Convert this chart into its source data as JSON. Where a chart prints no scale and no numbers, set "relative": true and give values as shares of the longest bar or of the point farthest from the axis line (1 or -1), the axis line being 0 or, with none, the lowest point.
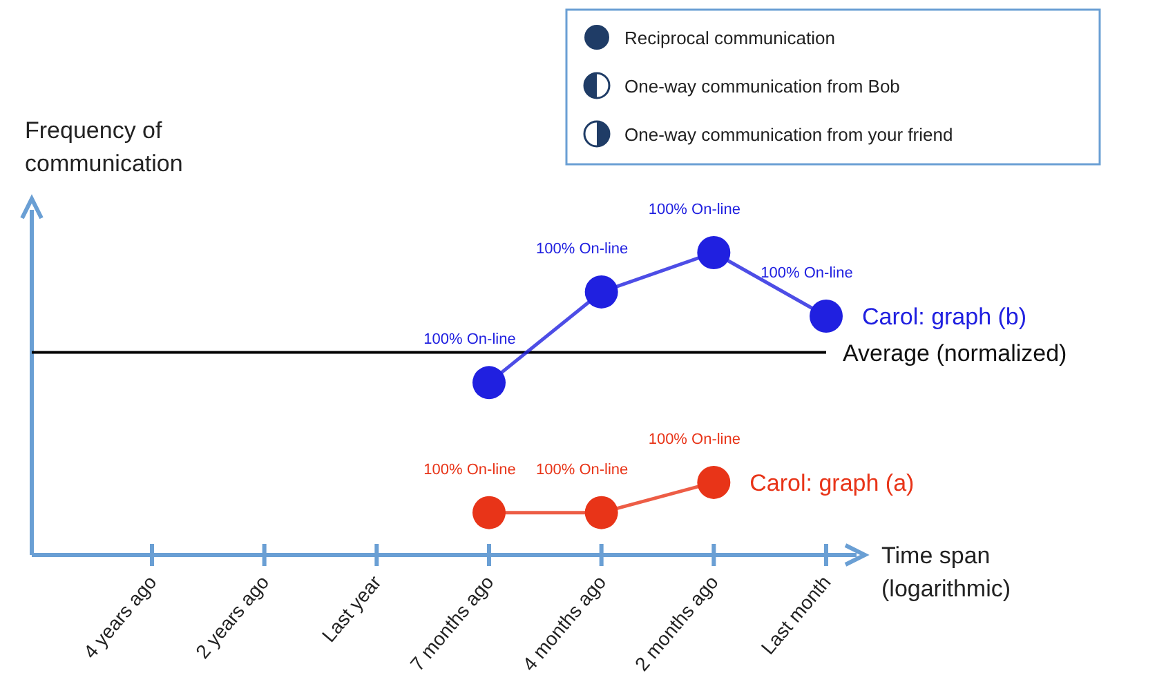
{
  "chart_data": {
    "type": "line",
    "relative": true,
    "xlabel": "Time span (logarithmic)",
    "ylabel": "Frequency of communication",
    "categories": [
      "4 years ago",
      "2 years ago",
      "Last year",
      "7 months ago",
      "4 months ago",
      "2 months ago",
      "Last month"
    ],
    "series": [
      {
        "name": "Carol: graph (b)",
        "color": "#2020e0",
        "values": [
          null,
          null,
          null,
          0.57,
          0.87,
          1,
          0.79
        ]
      },
      {
        "name": "Carol: graph (a)",
        "color": "#e83418",
        "values": [
          null,
          null,
          null,
          0.14,
          0.14,
          0.24,
          null
        ]
      }
    ],
    "ref_lines": [
      {
        "axis": "y",
        "value": 0.67,
        "label": "Average (normalized)",
        "color": "#000000"
      }
    ],
    "annotations": [
      "Reciprocal communication",
      "One-way communication from Bob",
      "One-way communication from your friend",
      {
        "text": "100% On-line",
        "x": "7 months ago",
        "y": 0.57
      },
      {
        "text": "100% On-line",
        "x": "4 months ago",
        "y": 0.87
      },
      {
        "text": "100% On-line",
        "x": "2 months ago",
        "y": 1
      },
      {
        "text": "100% On-line",
        "x": "Last month",
        "y": 0.79
      },
      {
        "text": "100% On-line",
        "x": "7 months ago",
        "y": 0.14
      },
      {
        "text": "100% On-line",
        "x": "4 months ago",
        "y": 0.14
      },
      {
        "text": "100% On-line",
        "x": "2 months ago",
        "y": 0.24
      }
    ],
    "marker": "circle"
  }
}
